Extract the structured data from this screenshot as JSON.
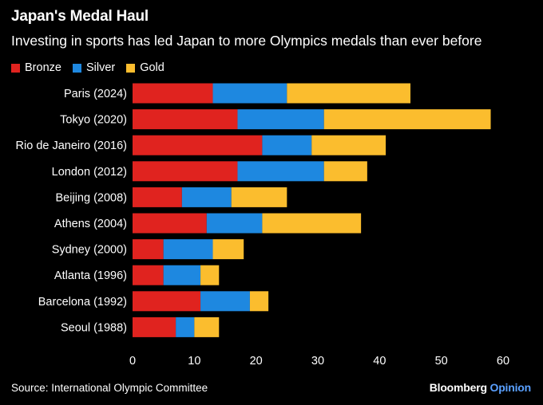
{
  "title": "Japan's Medal Haul",
  "subtitle": "Investing in sports has led Japan to more Olympics medals than ever before",
  "source": "Source: International Olympic Committee",
  "brand": {
    "name": "Bloomberg",
    "suffix": "Opinion"
  },
  "colors": {
    "bronze": "#e0231f",
    "silver": "#1e88e0",
    "gold": "#fbbd2e",
    "text": "#ffffff",
    "background": "#000000"
  },
  "chart_data": {
    "type": "bar",
    "orientation": "horizontal",
    "stacked": true,
    "categories": [
      "Paris (2024)",
      "Tokyo (2020)",
      "Rio de Janeiro (2016)",
      "London (2012)",
      "Beijing (2008)",
      "Athens (2004)",
      "Sydney (2000)",
      "Atlanta (1996)",
      "Barcelona (1992)",
      "Seoul (1988)"
    ],
    "series": [
      {
        "name": "Bronze",
        "color": "#e0231f",
        "values": [
          13,
          17,
          21,
          17,
          8,
          12,
          5,
          5,
          11,
          7
        ]
      },
      {
        "name": "Silver",
        "color": "#1e88e0",
        "values": [
          12,
          14,
          8,
          14,
          8,
          9,
          8,
          6,
          8,
          3
        ]
      },
      {
        "name": "Gold",
        "color": "#fbbd2e",
        "values": [
          20,
          27,
          12,
          7,
          9,
          16,
          5,
          3,
          3,
          4
        ]
      }
    ],
    "xlim": [
      0,
      60
    ],
    "xticks": [
      0,
      10,
      20,
      30,
      40,
      50,
      60
    ],
    "legend_position": "top-left",
    "grid": false
  }
}
